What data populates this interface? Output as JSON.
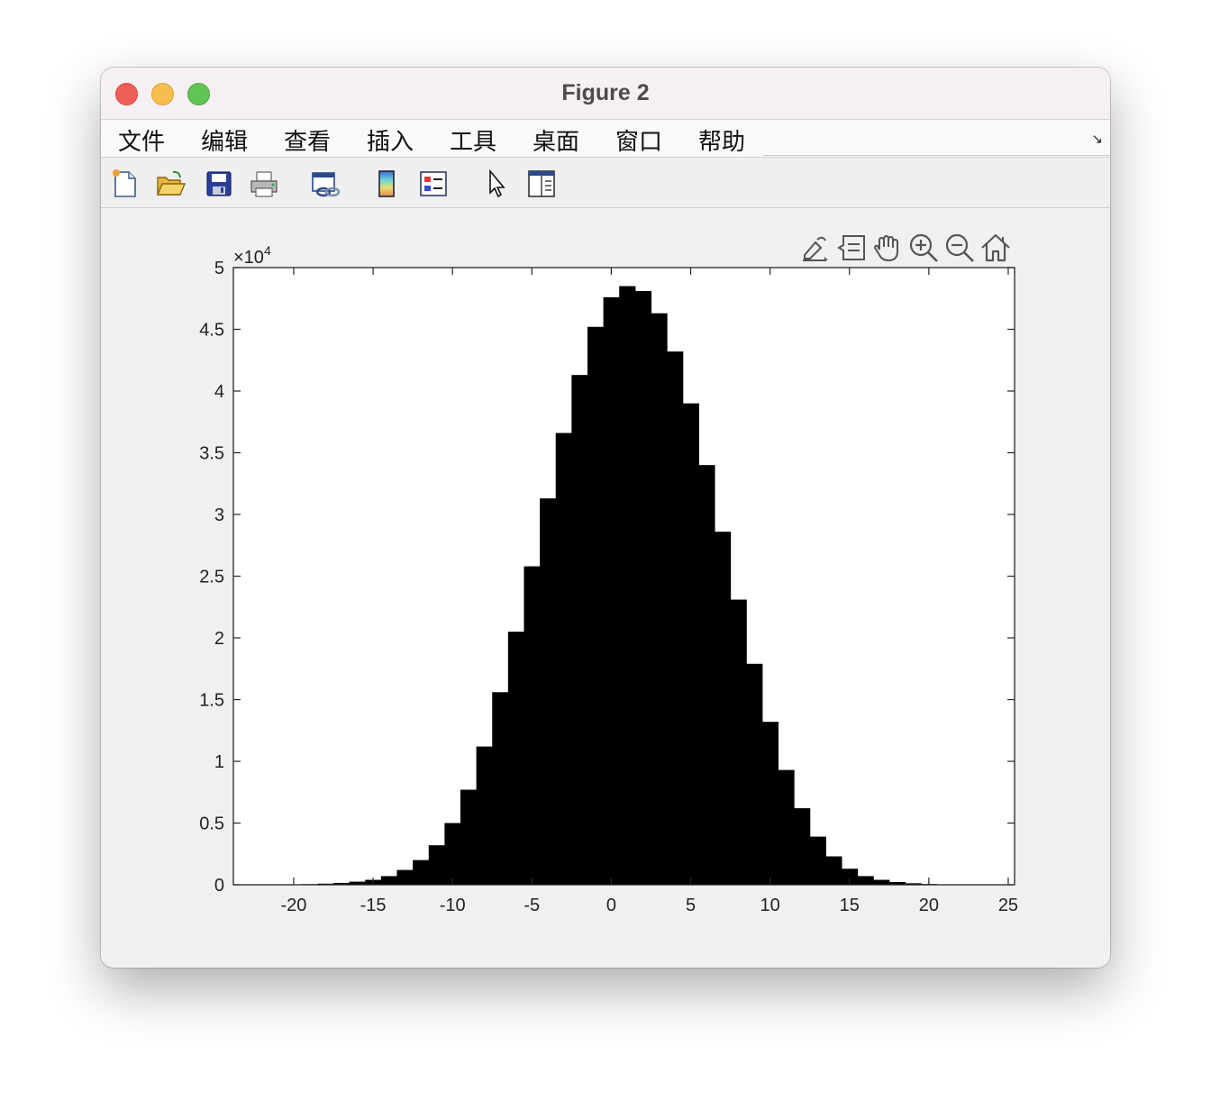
{
  "window": {
    "title": "Figure 2"
  },
  "menu": {
    "items": [
      "文件",
      "编辑",
      "查看",
      "插入",
      "工具",
      "桌面",
      "窗口",
      "帮助"
    ]
  },
  "toolbar": {
    "buttons": [
      {
        "icon": "new-figure-icon"
      },
      {
        "icon": "open-file-icon"
      },
      {
        "icon": "save-icon"
      },
      {
        "icon": "print-icon"
      },
      {
        "icon": "link-plot-icon"
      },
      {
        "icon": "colorbar-icon"
      },
      {
        "icon": "legend-icon"
      },
      {
        "icon": "edit-plot-pointer-icon"
      },
      {
        "icon": "property-inspector-icon"
      }
    ]
  },
  "axes_toolbar": {
    "buttons": [
      {
        "icon": "brush-icon"
      },
      {
        "icon": "datatip-icon"
      },
      {
        "icon": "pan-hand-icon"
      },
      {
        "icon": "zoom-in-icon"
      },
      {
        "icon": "zoom-out-icon"
      },
      {
        "icon": "home-icon"
      }
    ]
  },
  "chart_data": {
    "type": "bar",
    "title": "",
    "xlabel": "",
    "ylabel": "",
    "xlim": [
      -23.8,
      25.4
    ],
    "ylim": [
      0,
      50000
    ],
    "y_exponent_label": "×10",
    "y_exponent_power": "4",
    "xticks": [
      -20,
      -15,
      -10,
      -5,
      0,
      5,
      10,
      15,
      20,
      25
    ],
    "xtick_labels": [
      "-20",
      "-15",
      "-10",
      "-5",
      "0",
      "5",
      "10",
      "15",
      "20",
      "25"
    ],
    "yticks": [
      0,
      5000,
      10000,
      15000,
      20000,
      25000,
      30000,
      35000,
      40000,
      45000,
      50000
    ],
    "ytick_labels": [
      "0",
      "0.5",
      "1",
      "1.5",
      "2",
      "2.5",
      "3",
      "3.5",
      "4",
      "4.5",
      "5"
    ],
    "grid": false,
    "bar_color": "#000000",
    "x": [
      -21,
      -20,
      -19,
      -18,
      -17,
      -16,
      -15,
      -14,
      -13,
      -12,
      -11,
      -10,
      -9,
      -8,
      -7,
      -6,
      -5,
      -4,
      -3,
      -2,
      -1,
      0,
      1,
      2,
      3,
      4,
      5,
      6,
      7,
      8,
      9,
      10,
      11,
      12,
      13,
      14,
      15,
      16,
      17,
      18,
      19,
      20,
      21,
      22,
      23
    ],
    "values": [
      10,
      20,
      50,
      90,
      150,
      250,
      400,
      700,
      1200,
      2000,
      3200,
      5000,
      7700,
      11200,
      15600,
      20500,
      25800,
      31300,
      36600,
      41300,
      45200,
      47600,
      48500,
      48100,
      46300,
      43200,
      39000,
      34000,
      28600,
      23100,
      17900,
      13200,
      9300,
      6200,
      3900,
      2300,
      1300,
      700,
      400,
      220,
      120,
      60,
      30,
      15,
      8
    ]
  }
}
